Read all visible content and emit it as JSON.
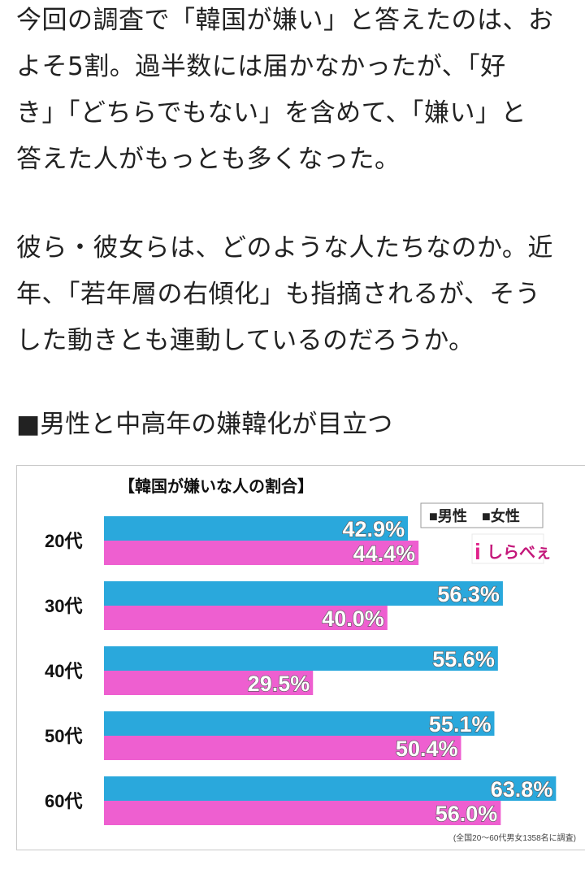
{
  "article": {
    "paragraph1": "今回の調査で「韓国が嫌い」と答えたのは、お\nよそ5割。過半数には届かなかったが、「好\nき」「どちらでもない」を含めて、「嫌い」と\n答えた人がもっとも多くなった。",
    "paragraph2": "彼ら・彼女らは、どのような人たちなのか。近\n年、「若年層の右傾化」も指摘されるが、そう\nした動きとも連動しているのだろうか。",
    "heading": "■男性と中高年の嫌韓化が目立つ"
  },
  "logo": {
    "text": "しらべぇ"
  },
  "chart_data": {
    "type": "bar",
    "orientation": "horizontal",
    "title": "【韓国が嫌いな人の割合】",
    "categories": [
      "20代",
      "30代",
      "40代",
      "50代",
      "60代"
    ],
    "series": [
      {
        "name": "男性",
        "values": [
          42.9,
          56.3,
          55.6,
          55.1,
          63.8
        ],
        "color": "#2aa8dc"
      },
      {
        "name": "女性",
        "values": [
          44.4,
          40.0,
          29.5,
          50.4,
          56.0
        ],
        "color": "#ee5fd0"
      }
    ],
    "value_labels": [
      [
        "42.9%",
        "56.3%",
        "55.6%",
        "55.1%",
        "63.8%"
      ],
      [
        "44.4%",
        "40.0%",
        "29.5%",
        "50.4%",
        "56.0%"
      ]
    ],
    "legend_placement": "top-right",
    "legend_labels": [
      "■男性",
      "■女性"
    ],
    "footnote": "(全国20～60代男女1358名に調査)",
    "xlim": [
      0,
      70
    ],
    "grid": false
  }
}
